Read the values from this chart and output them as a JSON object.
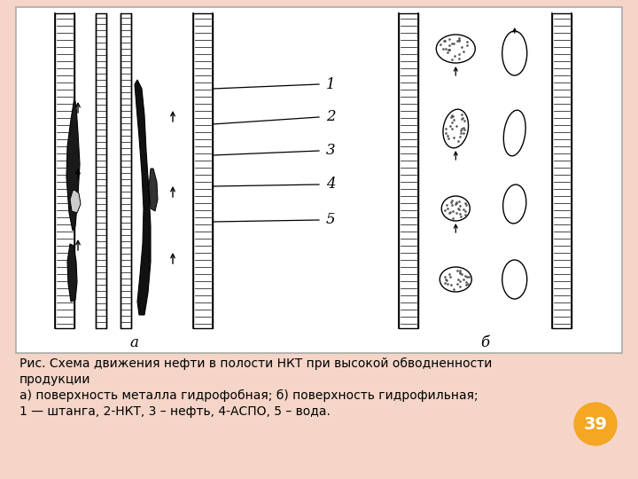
{
  "bg_color": "#f5d5c8",
  "panel_bg": "#ffffff",
  "title_lines": [
    "Рис. Схема движения нефти в полости НКТ при высокой обводненности",
    "продукции",
    "а) поверхность металла гидрофобная; б) поверхность гидрофильная;",
    "1 — штанга, 2-НКТ, 3 – нефть, 4-АСПО, 5 – вода."
  ],
  "badge_text": "39",
  "badge_color": "#f5a623",
  "sub_a": "а",
  "sub_b": "б"
}
